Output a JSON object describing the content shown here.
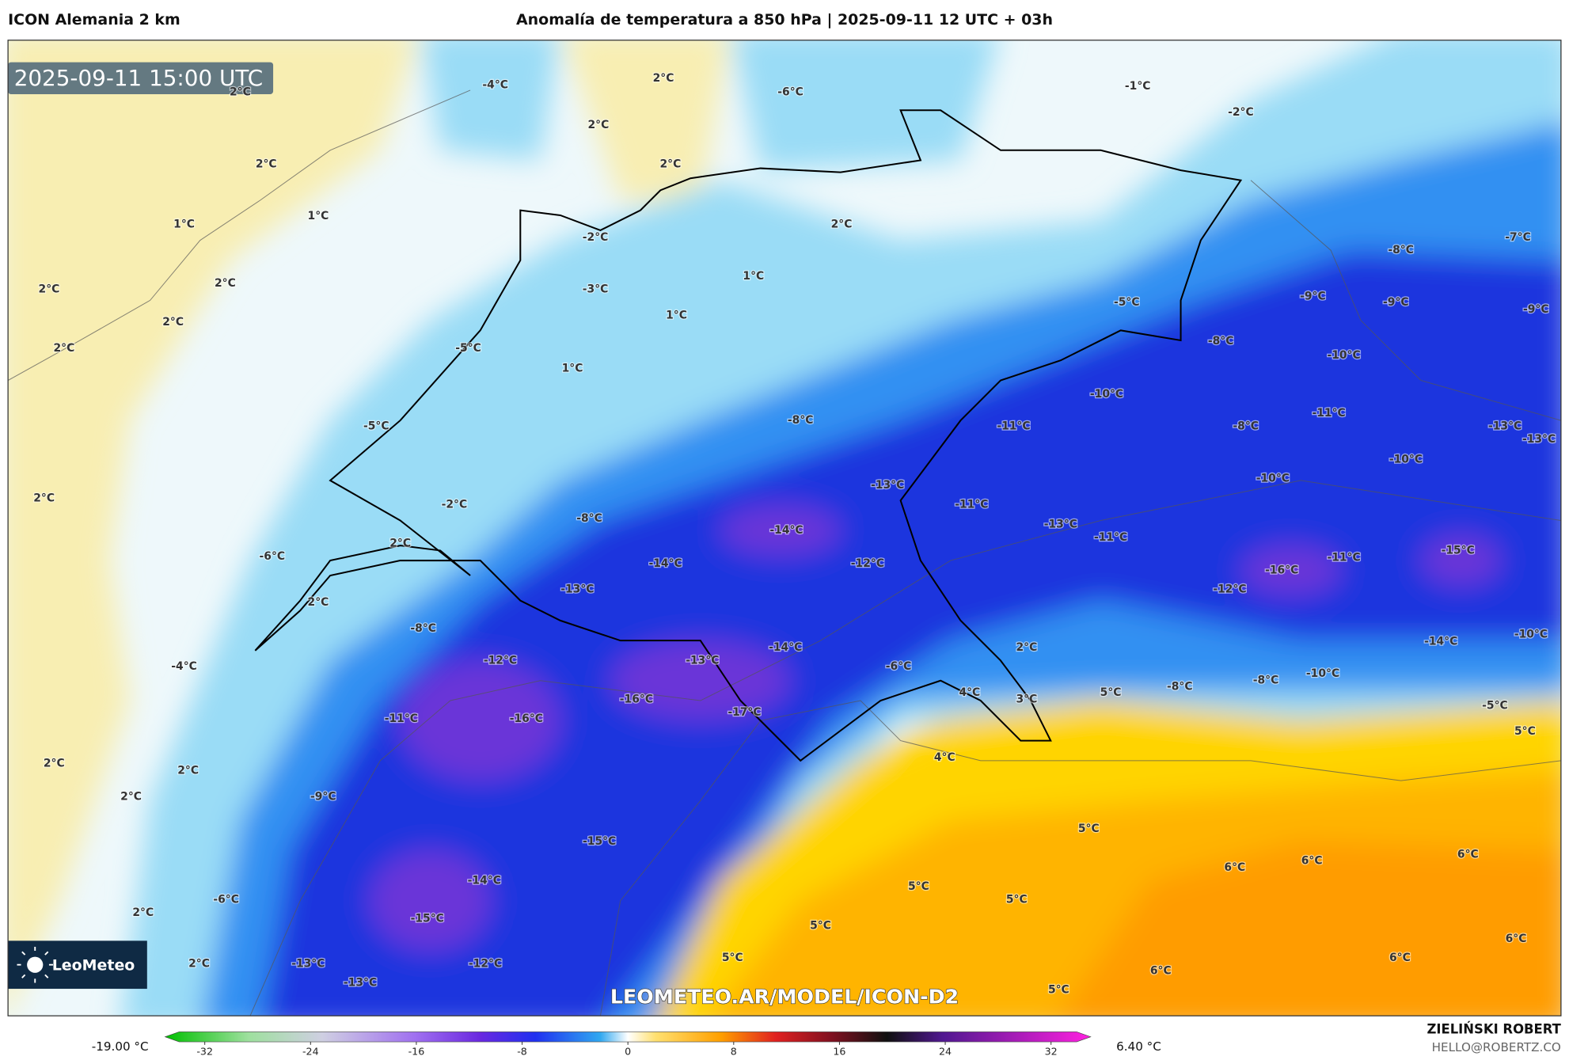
{
  "header": {
    "model": "ICON Alemania 2 km",
    "title": "Anomalía de temperatura a 850 hPa | 2025-09-11 12 UTC + 03h"
  },
  "map": {
    "timestamp": "2025-09-11 15:00 UTC",
    "watermark": "LEOMETEO.AR/MODEL/ICON-D2",
    "logo": "LeoMeteo",
    "labels": [
      "-4°C",
      "-6°C",
      "2°C",
      "-1°C",
      "-2°C",
      "2°C",
      "2°C",
      "2°C",
      "2°C",
      "1°C",
      "1°C",
      "-2°C",
      "2°C",
      "-7°C",
      "2°C",
      "2°C",
      "-8°C",
      "1°C",
      "-3°C",
      "-5°C",
      "-9°C",
      "-9°C",
      "-9°C",
      "2°C",
      "1°C",
      "-8°C",
      "2°C",
      "-5°C",
      "-10°C",
      "1°C",
      "-10°C",
      "-8°C",
      "-11°C",
      "-5°C",
      "-11°C",
      "-8°C",
      "-13°C",
      "-13°C",
      "-10°C",
      "-13°C",
      "-10°C",
      "2°C",
      "-2°C",
      "-11°C",
      "-8°C",
      "-14°C",
      "-13°C",
      "-11°C",
      "-15°C",
      "2°C",
      "-6°C",
      "-14°C",
      "-12°C",
      "-16°C",
      "-11°C",
      "-13°C",
      "-12°C",
      "2°C",
      "-8°C",
      "-14°C",
      "-10°C",
      "-12°C",
      "-13°C",
      "-14°C",
      "2°C",
      "-6°C",
      "-4°C",
      "4°C",
      "3°C",
      "5°C",
      "-8°C",
      "-8°C",
      "-10°C",
      "-16°C",
      "-17°C",
      "-16°C",
      "-11°C",
      "-5°C",
      "5°C",
      "4°C",
      "2°C",
      "2°C",
      "2°C",
      "-9°C",
      "5°C",
      "-15°C",
      "6°C",
      "6°C",
      "6°C",
      "-14°C",
      "5°C",
      "5°C",
      "-6°C",
      "2°C",
      "-15°C",
      "5°C",
      "6°C",
      "5°C",
      "6°C",
      "6°C",
      "2°C",
      "-13°C",
      "-12°C",
      "-13°C",
      "5°C"
    ]
  },
  "colorbar": {
    "min_label": "-19.00 °C",
    "max_label": "6.40 °C",
    "lim": [
      -35,
      35
    ],
    "ticks": [
      -32,
      -24,
      -16,
      -8,
      0,
      8,
      16,
      24,
      32
    ]
  },
  "credit": {
    "name": "ZIELIŃSKI ROBERT",
    "email": "HELLO@ROBERTZ.CO"
  }
}
